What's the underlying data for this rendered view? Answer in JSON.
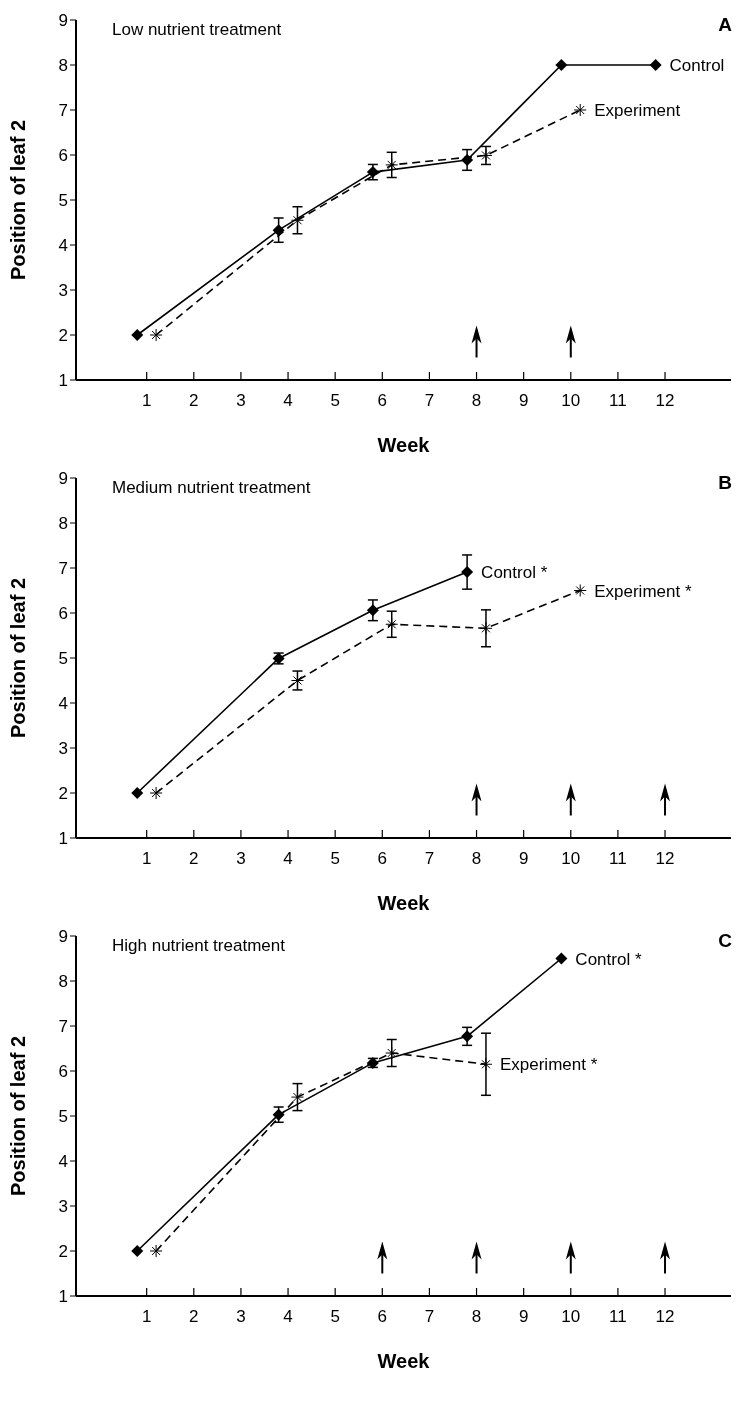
{
  "chart_data": [
    {
      "type": "line",
      "title": "Low nutrient treatment",
      "xlabel": "Week",
      "ylabel": "Position of leaf 2",
      "annotations": [
        "A"
      ],
      "xlim": [
        -0.5,
        13.4
      ],
      "xticks": [
        1,
        2,
        3,
        4,
        5,
        6,
        7,
        8,
        9,
        10,
        11,
        12
      ],
      "ylim": [
        1,
        9
      ],
      "yticks": [
        1,
        2,
        3,
        4,
        5,
        6,
        7,
        8,
        9
      ],
      "grid": false,
      "series": [
        {
          "name": "Control",
          "color": "#000000",
          "marker": "diamond",
          "line_style": "solid",
          "x": [
            0.8,
            3.8,
            5.8,
            7.8,
            9.8,
            11.8
          ],
          "values": [
            2,
            4.33,
            5.62,
            5.89,
            8,
            8
          ],
          "errors": [
            null,
            0.27,
            0.17,
            0.23,
            null,
            null
          ]
        },
        {
          "name": "Experiment",
          "color": "#000000",
          "marker": "cross",
          "line_style": "dashed",
          "x": [
            1.2,
            4.2,
            6.2,
            8.2,
            10.2
          ],
          "values": [
            2,
            4.55,
            5.78,
            5.99,
            7
          ],
          "errors": [
            null,
            0.3,
            0.28,
            0.2,
            null
          ]
        }
      ]
    },
    {
      "type": "line",
      "title": "Medium nutrient treatment",
      "xlabel": "Week",
      "ylabel": "Position of leaf 2",
      "annotations": [
        "B"
      ],
      "xlim": [
        -0.5,
        13.4
      ],
      "xticks": [
        1,
        2,
        3,
        4,
        5,
        6,
        7,
        8,
        9,
        10,
        11,
        12
      ],
      "ylim": [
        1,
        9
      ],
      "yticks": [
        1,
        2,
        3,
        4,
        5,
        6,
        7,
        8,
        9
      ],
      "grid": false,
      "series": [
        {
          "name": "Control *",
          "color": "#000000",
          "marker": "diamond",
          "line_style": "solid",
          "x": [
            0.8,
            3.8,
            5.8,
            7.8
          ],
          "values": [
            2,
            4.99,
            6.06,
            6.91
          ],
          "errors": [
            null,
            0.12,
            0.23,
            0.38
          ]
        },
        {
          "name": "Experiment *",
          "color": "#000000",
          "marker": "cross",
          "line_style": "dashed",
          "x": [
            1.2,
            4.2,
            6.2,
            8.2,
            10.2
          ],
          "values": [
            2,
            4.5,
            5.75,
            5.66,
            6.5
          ],
          "errors": [
            null,
            0.21,
            0.29,
            0.41,
            null
          ]
        }
      ]
    },
    {
      "type": "line",
      "title": "High nutrient treatment",
      "xlabel": "Week",
      "ylabel": "Position of leaf 2",
      "annotations": [
        "C"
      ],
      "xlim": [
        -0.5,
        13.4
      ],
      "xticks": [
        1,
        2,
        3,
        4,
        5,
        6,
        7,
        8,
        9,
        10,
        11,
        12
      ],
      "ylim": [
        1,
        9
      ],
      "yticks": [
        1,
        2,
        3,
        4,
        5,
        6,
        7,
        8,
        9
      ],
      "grid": false,
      "series": [
        {
          "name": "Control *",
          "color": "#000000",
          "marker": "diamond",
          "line_style": "solid",
          "x": [
            0.8,
            3.8,
            5.8,
            7.8,
            9.8
          ],
          "values": [
            2,
            5.03,
            6.18,
            6.77,
            8.5
          ],
          "errors": [
            null,
            0.17,
            0.1,
            0.2,
            null
          ]
        },
        {
          "name": "Experiment *",
          "color": "#000000",
          "marker": "cross",
          "line_style": "dashed",
          "x": [
            1.2,
            4.2,
            6.2,
            8.2
          ],
          "values": [
            2,
            5.42,
            6.4,
            6.15
          ],
          "errors": [
            null,
            0.3,
            0.3,
            0.69
          ]
        }
      ]
    }
  ]
}
